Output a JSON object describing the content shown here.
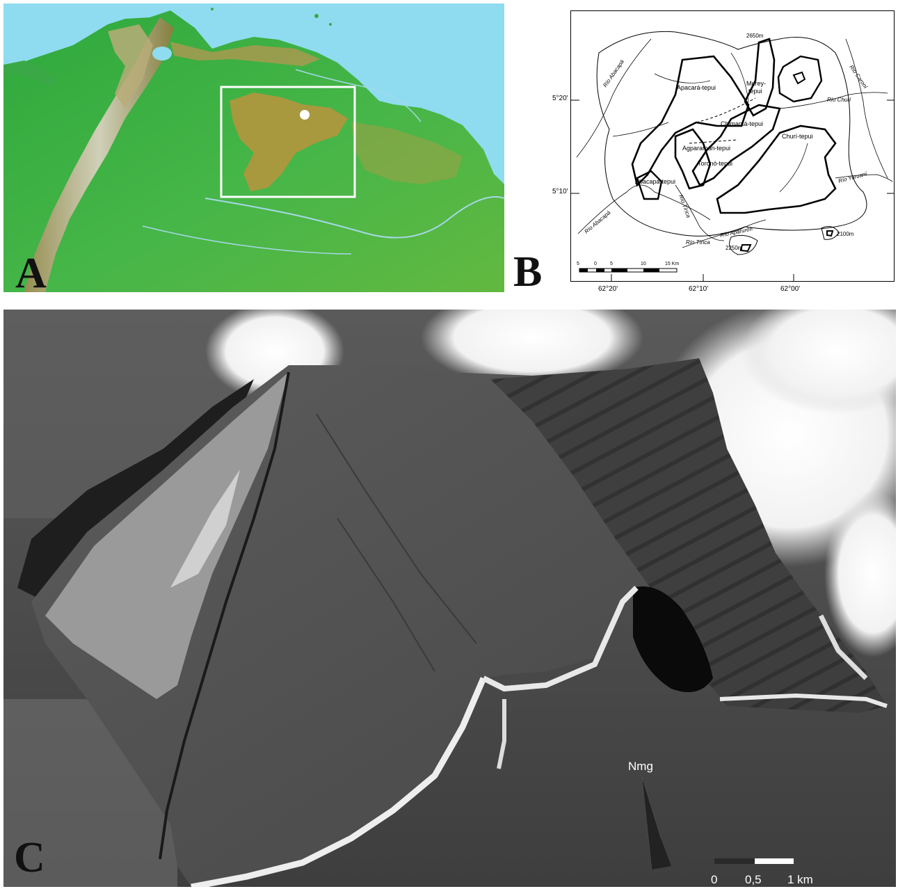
{
  "panels": {
    "a": {
      "letter": "A"
    },
    "b": {
      "letter": "B"
    },
    "c": {
      "letter": "C"
    }
  },
  "map_b": {
    "tepuis": [
      "Murey-tepui",
      "Apacará-tepui",
      "Chimantá-tepui",
      "Churí-tepui",
      "Agparamán-tepui",
      "Toronó-tepui",
      "Abacapá-tepui"
    ],
    "murey_line1": "Murey-",
    "murey_line2": "tepui",
    "rivers": [
      "Río Abacapá",
      "Río Caroní",
      "Río Churí",
      "Río Yuruaní",
      "Río Tírica",
      "Río Aparurén",
      "Río Abacapá",
      "Río Tírica"
    ],
    "elevations": [
      "2650m",
      "2100m",
      "2250m"
    ],
    "latitudes": [
      "5°20'",
      "5°10'"
    ],
    "longitudes": [
      "62°20'",
      "62°10'",
      "62°00'"
    ],
    "scale_ticks": [
      "5",
      "0",
      "5",
      "10",
      "15 Km"
    ]
  },
  "photo_c": {
    "north_label": "Nmg",
    "scale_ticks": [
      "0",
      "0,5",
      "1 km"
    ]
  },
  "colors": {
    "ocean": "#8fdcf0",
    "lowland": "#3cb04a",
    "upland": "#a89a3c",
    "mountain": "#c8c0a8",
    "box": "#ffffff",
    "marker": "#ffffff"
  }
}
